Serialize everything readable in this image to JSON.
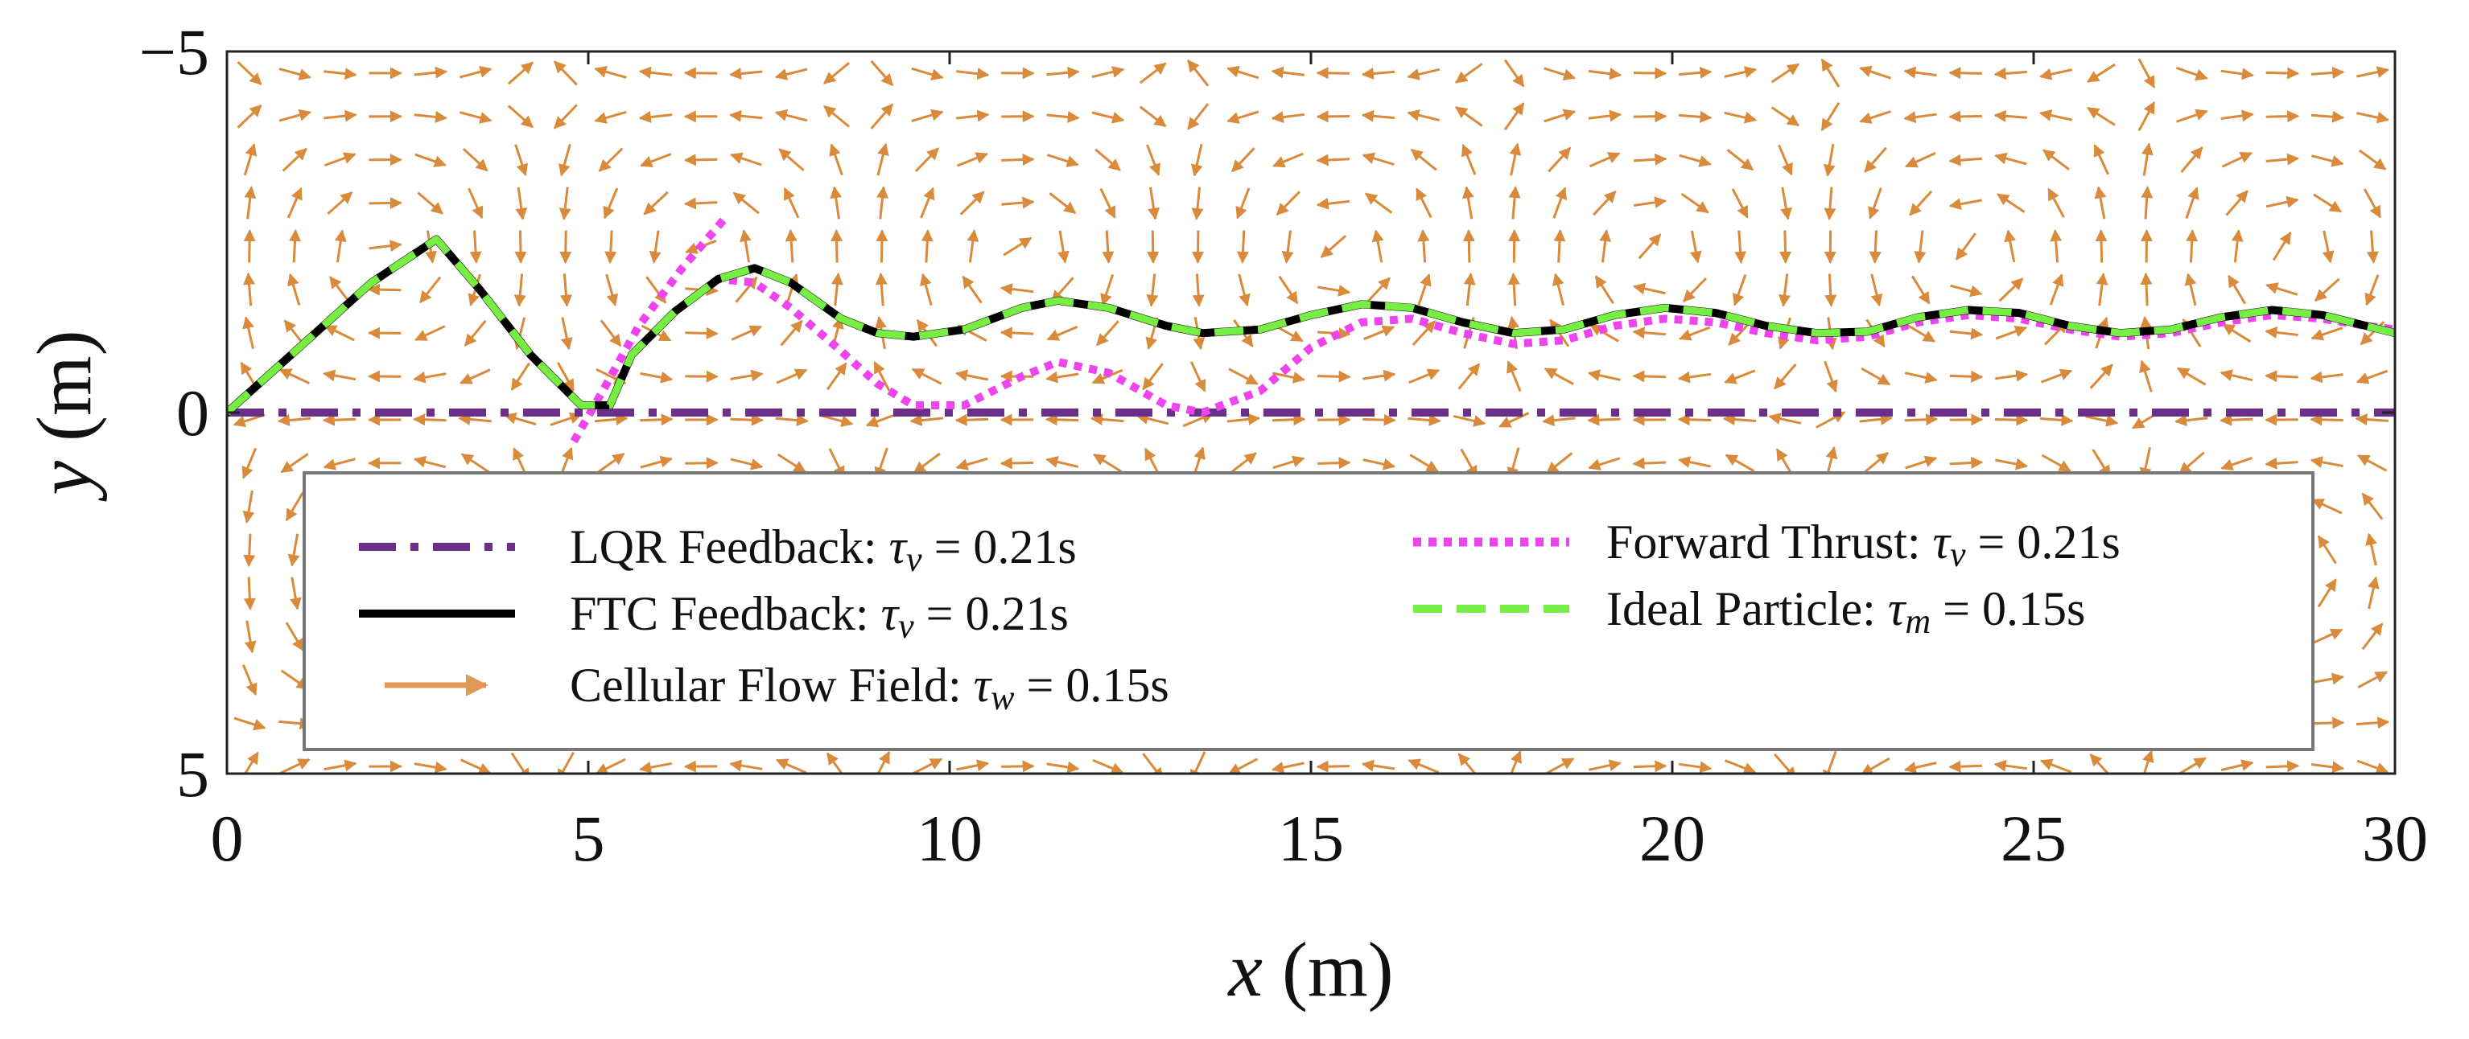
{
  "chart_data": {
    "type": "line",
    "title": "",
    "xlabel_var": "x",
    "xlabel_unit": " (m)",
    "ylabel_var": "y",
    "ylabel_unit": " (m)",
    "xlim": [
      0,
      30
    ],
    "ylim": [
      -5,
      5
    ],
    "y_inverted": true,
    "grid": false,
    "x_ticks": [
      0,
      5,
      10,
      15,
      20,
      25,
      30
    ],
    "x_tick_labels": [
      "0",
      "5",
      "10",
      "15",
      "20",
      "25",
      "30"
    ],
    "y_ticks": [
      -5,
      0,
      5
    ],
    "y_tick_labels": [
      "−5",
      "0",
      "5"
    ],
    "legend_placement": "bottom-center",
    "flow_field": {
      "name": "Cellular Flow Field",
      "color": "#d98a3a",
      "cell_size_m": 4.4,
      "grid_dx": 0.625,
      "grid_dy": 0.6
    },
    "series": [
      {
        "id": "lqr",
        "name": "LQR Feedback",
        "param_symbol": "τ",
        "param_sub": "v",
        "param_value": " = 0.21s",
        "color": "#6b2f8a",
        "style": "dashdot",
        "x": [
          0,
          30
        ],
        "y": [
          0,
          0
        ]
      },
      {
        "id": "ftc",
        "name": "FTC Feedback",
        "param_symbol": "τ",
        "param_sub": "v",
        "param_value": " = 0.21s",
        "color": "#000000",
        "style": "solid",
        "x": [
          0,
          1,
          2,
          2.9,
          3.5,
          4.2,
          4.9,
          5.3,
          5.6,
          6.2,
          6.8,
          7.3,
          7.8,
          8.5,
          9.0,
          9.5,
          10.2,
          11.0,
          11.5,
          12.2,
          13.0,
          13.5,
          14.3,
          15.0,
          15.7,
          16.4,
          17.1,
          17.8,
          18.5,
          19.2,
          19.9,
          20.6,
          21.3,
          22.0,
          22.7,
          23.4,
          24.1,
          24.8,
          25.5,
          26.2,
          26.9,
          27.6,
          28.3,
          29.0,
          29.6,
          30
        ],
        "y": [
          0,
          -0.9,
          -1.8,
          -2.4,
          -1.7,
          -0.8,
          -0.1,
          -0.1,
          -0.8,
          -1.4,
          -1.85,
          -2.0,
          -1.8,
          -1.3,
          -1.1,
          -1.05,
          -1.15,
          -1.45,
          -1.55,
          -1.45,
          -1.2,
          -1.1,
          -1.15,
          -1.35,
          -1.5,
          -1.45,
          -1.25,
          -1.1,
          -1.15,
          -1.35,
          -1.45,
          -1.38,
          -1.2,
          -1.1,
          -1.12,
          -1.32,
          -1.42,
          -1.38,
          -1.2,
          -1.1,
          -1.15,
          -1.32,
          -1.42,
          -1.35,
          -1.2,
          -1.1
        ]
      },
      {
        "id": "forward",
        "name": "Forward Thrust",
        "param_symbol": "τ",
        "param_sub": "v",
        "param_value": " = 0.21s",
        "color": "#ee44ee",
        "style": "dotted",
        "x": [
          0,
          1,
          2,
          2.9,
          3.5,
          4.2,
          4.9,
          5.3,
          5.6,
          6.2,
          6.8,
          7.3,
          7.8,
          8.5,
          9.0,
          9.5,
          10.2,
          11.0,
          11.5,
          12.2,
          13.0,
          13.5,
          14.3,
          15.0,
          15.7,
          16.4,
          17.1,
          17.8,
          18.5,
          19.2,
          19.9,
          20.6,
          21.3,
          22.0,
          22.7,
          23.4,
          24.1,
          24.8,
          25.5,
          26.2,
          26.9,
          27.6,
          28.3,
          29.0,
          29.6,
          30
        ],
        "y": [
          0,
          -0.9,
          -1.8,
          -2.4,
          -1.7,
          -0.8,
          -0.1,
          -0.1,
          -0.8,
          -1.4,
          -1.85,
          -1.8,
          -1.45,
          -0.85,
          -0.4,
          -0.1,
          -0.1,
          -0.5,
          -0.7,
          -0.55,
          -0.1,
          0.0,
          -0.3,
          -0.9,
          -1.25,
          -1.3,
          -1.1,
          -0.95,
          -1.0,
          -1.2,
          -1.3,
          -1.25,
          -1.1,
          -1.0,
          -1.05,
          -1.25,
          -1.35,
          -1.3,
          -1.15,
          -1.05,
          -1.1,
          -1.25,
          -1.35,
          -1.3,
          -1.2,
          -1.15
        ]
      },
      {
        "id": "forward_branch",
        "name": "",
        "color": "#ee44ee",
        "style": "dotted",
        "x": [
          4.8,
          5.2,
          5.7,
          6.3,
          6.9
        ],
        "y": [
          0.4,
          -0.3,
          -1.2,
          -2.0,
          -2.7
        ]
      },
      {
        "id": "ideal",
        "name": "Ideal Particle",
        "param_symbol": "τ",
        "param_sub": "m",
        "param_value": " = 0.15s",
        "color": "#77ee44",
        "style": "dashed",
        "x": [
          0,
          1,
          2,
          2.9,
          3.5,
          4.2,
          4.9,
          5.3,
          5.6,
          6.2,
          6.8,
          7.3,
          7.8,
          8.5,
          9.0,
          9.5,
          10.2,
          11.0,
          11.5,
          12.2,
          13.0,
          13.5,
          14.3,
          15.0,
          15.7,
          16.4,
          17.1,
          17.8,
          18.5,
          19.2,
          19.9,
          20.6,
          21.3,
          22.0,
          22.7,
          23.4,
          24.1,
          24.8,
          25.5,
          26.2,
          26.9,
          27.6,
          28.3,
          29.0,
          29.6,
          30
        ],
        "y": [
          0,
          -0.9,
          -1.8,
          -2.4,
          -1.7,
          -0.8,
          -0.1,
          -0.1,
          -0.8,
          -1.4,
          -1.85,
          -2.0,
          -1.8,
          -1.3,
          -1.1,
          -1.05,
          -1.15,
          -1.45,
          -1.55,
          -1.45,
          -1.2,
          -1.1,
          -1.15,
          -1.35,
          -1.5,
          -1.45,
          -1.25,
          -1.1,
          -1.15,
          -1.35,
          -1.45,
          -1.38,
          -1.2,
          -1.1,
          -1.12,
          -1.32,
          -1.42,
          -1.38,
          -1.2,
          -1.1,
          -1.15,
          -1.32,
          -1.42,
          -1.35,
          -1.2,
          -1.1
        ]
      }
    ],
    "legend": [
      {
        "label": "LQR Feedback: ",
        "symbol": "τ",
        "sub": "v",
        "value": " = 0.21s",
        "series": "lqr"
      },
      {
        "label": "FTC Feedback: ",
        "symbol": "τ",
        "sub": "v",
        "value": " = 0.21s",
        "series": "ftc"
      },
      {
        "label": "Cellular Flow Field: ",
        "symbol": "τ",
        "sub": "w",
        "value": " = 0.15s",
        "series": "flow"
      },
      {
        "label": "Forward Thrust: ",
        "symbol": "τ",
        "sub": "v",
        "value": " = 0.21s",
        "series": "forward"
      },
      {
        "label": "Ideal Particle: ",
        "symbol": "τ",
        "sub": "m",
        "value": " = 0.15s",
        "series": "ideal"
      }
    ]
  }
}
